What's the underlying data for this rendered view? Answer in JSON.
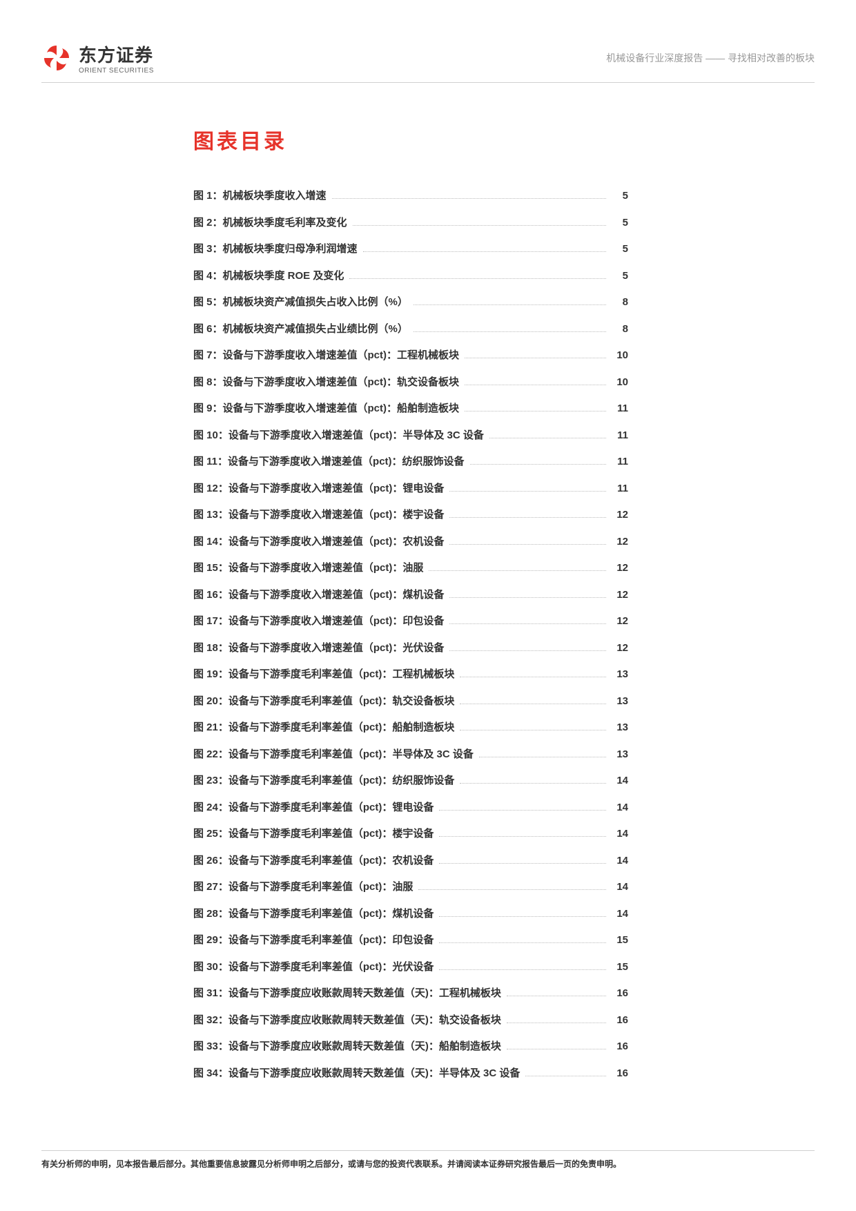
{
  "header": {
    "company_cn": "东方证券",
    "company_en": "ORIENT SECURITIES",
    "subtitle": "机械设备行业深度报告 —— 寻找相对改善的板块",
    "logo_color": "#e6332a"
  },
  "section_title": "图表目录",
  "colors": {
    "title_color": "#e6332a",
    "text_color": "#333333",
    "muted": "#999999",
    "divider": "#d0d0d0",
    "background": "#ffffff"
  },
  "typography": {
    "title_fontsize": 30,
    "item_fontsize": 15,
    "header_fontsize": 14,
    "footer_fontsize": 12
  },
  "toc": [
    {
      "label": "图 1：机械板块季度收入增速",
      "page": "5"
    },
    {
      "label": "图 2：机械板块季度毛利率及变化",
      "page": "5"
    },
    {
      "label": "图 3：机械板块季度归母净利润增速",
      "page": "5"
    },
    {
      "label": "图 4：机械板块季度 ROE 及变化",
      "page": "5"
    },
    {
      "label": "图 5：机械板块资产减值损失占收入比例（%）",
      "page": "8"
    },
    {
      "label": "图 6：机械板块资产减值损失占业绩比例（%）",
      "page": "8"
    },
    {
      "label": "图 7：设备与下游季度收入增速差值（pct)：工程机械板块",
      "page": "10"
    },
    {
      "label": "图 8：设备与下游季度收入增速差值（pct)：轨交设备板块",
      "page": "10"
    },
    {
      "label": "图 9：设备与下游季度收入增速差值（pct)：船舶制造板块",
      "page": "11"
    },
    {
      "label": "图 10：设备与下游季度收入增速差值（pct)：半导体及 3C 设备",
      "page": "11"
    },
    {
      "label": "图 11：设备与下游季度收入增速差值（pct)：纺织服饰设备",
      "page": "11"
    },
    {
      "label": "图 12：设备与下游季度收入增速差值（pct)：锂电设备",
      "page": "11"
    },
    {
      "label": "图 13：设备与下游季度收入增速差值（pct)：楼宇设备",
      "page": "12"
    },
    {
      "label": "图 14：设备与下游季度收入增速差值（pct)：农机设备",
      "page": "12"
    },
    {
      "label": "图 15：设备与下游季度收入增速差值（pct)：油服",
      "page": "12"
    },
    {
      "label": "图 16：设备与下游季度收入增速差值（pct)：煤机设备",
      "page": "12"
    },
    {
      "label": "图 17：设备与下游季度收入增速差值（pct)：印包设备",
      "page": "12"
    },
    {
      "label": "图 18：设备与下游季度收入增速差值（pct)：光伏设备",
      "page": "12"
    },
    {
      "label": "图 19：设备与下游季度毛利率差值（pct)：工程机械板块",
      "page": "13"
    },
    {
      "label": "图 20：设备与下游季度毛利率差值（pct)：轨交设备板块",
      "page": "13"
    },
    {
      "label": "图 21：设备与下游季度毛利率差值（pct)：船舶制造板块",
      "page": "13"
    },
    {
      "label": "图 22：设备与下游季度毛利率差值（pct)：半导体及 3C 设备",
      "page": "13"
    },
    {
      "label": "图 23：设备与下游季度毛利率差值（pct)：纺织服饰设备",
      "page": "14"
    },
    {
      "label": "图 24：设备与下游季度毛利率差值（pct)：锂电设备",
      "page": "14"
    },
    {
      "label": "图 25：设备与下游季度毛利率差值（pct)：楼宇设备",
      "page": "14"
    },
    {
      "label": "图 26：设备与下游季度毛利率差值（pct)：农机设备",
      "page": "14"
    },
    {
      "label": "图 27：设备与下游季度毛利率差值（pct)：油服",
      "page": "14"
    },
    {
      "label": "图 28：设备与下游季度毛利率差值（pct)：煤机设备",
      "page": "14"
    },
    {
      "label": "图 29：设备与下游季度毛利率差值（pct)：印包设备",
      "page": "15"
    },
    {
      "label": "图 30：设备与下游季度毛利率差值（pct)：光伏设备",
      "page": "15"
    },
    {
      "label": "图 31：设备与下游季度应收账款周转天数差值（天)：工程机械板块",
      "page": "16"
    },
    {
      "label": "图 32：设备与下游季度应收账款周转天数差值（天)：轨交设备板块",
      "page": "16"
    },
    {
      "label": "图 33：设备与下游季度应收账款周转天数差值（天)：船舶制造板块",
      "page": "16"
    },
    {
      "label": "图 34：设备与下游季度应收账款周转天数差值（天)：半导体及 3C 设备",
      "page": "16"
    }
  ],
  "footer": "有关分析师的申明，见本报告最后部分。其他重要信息披露见分析师申明之后部分，或请与您的投资代表联系。并请阅读本证券研究报告最后一页的免责申明。"
}
